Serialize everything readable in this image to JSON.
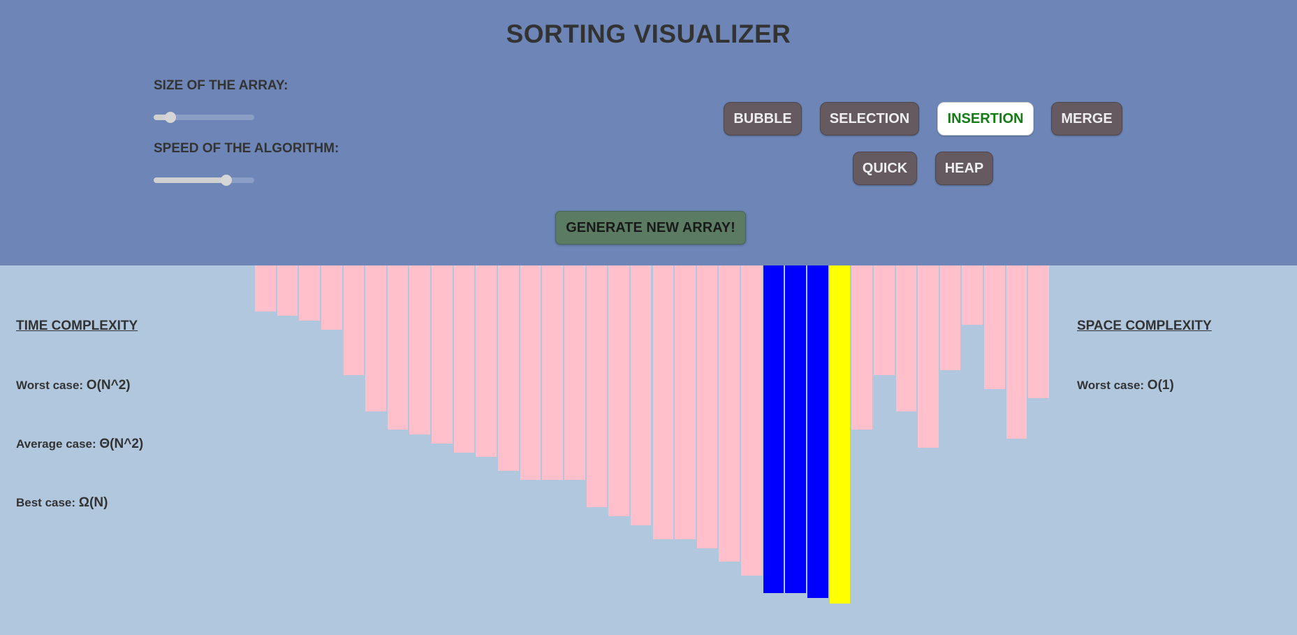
{
  "title": "SORTING VISUALIZER",
  "controls": {
    "size_label": "SIZE OF THE ARRAY:",
    "size_value": 0.17,
    "speed_label": "SPEED OF THE ALGORITHM:",
    "speed_value": 0.72
  },
  "algorithms": [
    {
      "label": "BUBBLE",
      "active": false
    },
    {
      "label": "SELECTION",
      "active": false
    },
    {
      "label": "INSERTION",
      "active": true
    },
    {
      "label": "MERGE",
      "active": false
    },
    {
      "label": "QUICK",
      "active": false
    },
    {
      "label": "HEAP",
      "active": false
    }
  ],
  "generate_label": "GENERATE NEW ARRAY!",
  "time_complexity": {
    "heading": "TIME COMPLEXITY",
    "worst_label": "Worst case:",
    "worst_value": "O(N^2)",
    "average_label": "Average case:",
    "average_value": "Θ(N^2)",
    "best_label": "Best case:",
    "best_value": "Ω(N)"
  },
  "space_complexity": {
    "heading": "SPACE COMPLEXITY",
    "worst_label": "Worst case:",
    "worst_value": "O(1)"
  },
  "colors": {
    "default_bar": "#ffc0cb",
    "compare_bar": "#0000ff",
    "current_bar": "#ffff00"
  },
  "array": {
    "max_value": 529,
    "values": [
      66,
      72,
      79,
      92,
      157,
      209,
      235,
      242,
      255,
      268,
      274,
      294,
      307,
      307,
      307,
      346,
      359,
      372,
      392,
      392,
      405,
      424,
      444,
      469,
      469,
      476,
      484,
      235,
      157,
      209,
      261,
      150,
      85,
      177,
      248,
      190
    ],
    "states": [
      "default",
      "default",
      "default",
      "default",
      "default",
      "default",
      "default",
      "default",
      "default",
      "default",
      "default",
      "default",
      "default",
      "default",
      "default",
      "default",
      "default",
      "default",
      "default",
      "default",
      "default",
      "default",
      "default",
      "compare",
      "compare",
      "compare",
      "current",
      "default",
      "default",
      "default",
      "default",
      "default",
      "default",
      "default",
      "default",
      "default"
    ]
  }
}
